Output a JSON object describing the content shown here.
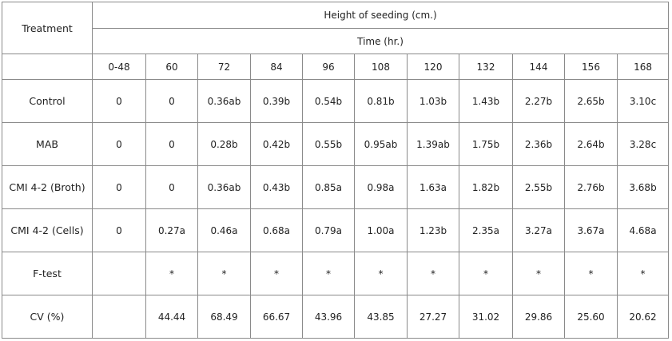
{
  "table": {
    "treatment_header": "Treatment",
    "height_header": "Height of seeding (cm.)",
    "time_header": "Time (hr.)",
    "time_columns": [
      "0-48",
      "60",
      "72",
      "84",
      "96",
      "108",
      "120",
      "132",
      "144",
      "156",
      "168"
    ],
    "rows": [
      {
        "label": "Control",
        "values": [
          "0",
          "0",
          "0.36ab",
          "0.39b",
          "0.54b",
          "0.81b",
          "1.03b",
          "1.43b",
          "2.27b",
          "2.65b",
          "3.10c"
        ]
      },
      {
        "label": "MAB",
        "values": [
          "0",
          "0",
          "0.28b",
          "0.42b",
          "0.55b",
          "0.95ab",
          "1.39ab",
          "1.75b",
          "2.36b",
          "2.64b",
          "3.28c"
        ]
      },
      {
        "label": "CMI 4-2 (Broth)",
        "values": [
          "0",
          "0",
          "0.36ab",
          "0.43b",
          "0.85a",
          "0.98a",
          "1.63a",
          "1.82b",
          "2.55b",
          "2.76b",
          "3.68b"
        ]
      },
      {
        "label": "CMI 4-2 (Cells)",
        "values": [
          "0",
          "0.27a",
          "0.46a",
          "0.68a",
          "0.79a",
          "1.00a",
          "1.23b",
          "2.35a",
          "3.27a",
          "3.67a",
          "4.68a"
        ]
      },
      {
        "label": "F-test",
        "values": [
          "",
          "*",
          "*",
          "*",
          "*",
          "*",
          "*",
          "*",
          "*",
          "*",
          "*"
        ]
      },
      {
        "label": "CV (%)",
        "values": [
          "",
          "44.44",
          "68.49",
          "66.67",
          "43.96",
          "43.85",
          "27.27",
          "31.02",
          "29.86",
          "25.60",
          "20.62"
        ]
      }
    ]
  }
}
